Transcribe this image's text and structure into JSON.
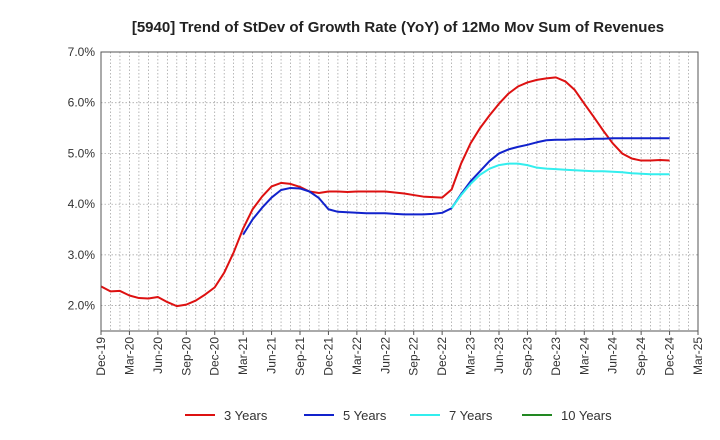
{
  "chart_data": {
    "type": "line",
    "title": "[5940]  Trend of StDev of Growth Rate (YoY) of 12Mo Mov Sum of Revenues",
    "xlabel": "",
    "ylabel": "",
    "ylim": [
      1.5,
      7.0
    ],
    "yticks": [
      2.0,
      3.0,
      4.0,
      5.0,
      6.0,
      7.0
    ],
    "ytick_labels": [
      "2.0%",
      "3.0%",
      "4.0%",
      "5.0%",
      "6.0%",
      "7.0%"
    ],
    "x_start": "Dec-19",
    "x_labels": [
      "Dec-19",
      "Mar-20",
      "Jun-20",
      "Sep-20",
      "Dec-20",
      "Mar-21",
      "Jun-21",
      "Sep-21",
      "Dec-21",
      "Mar-22",
      "Jun-22",
      "Sep-22",
      "Dec-22",
      "Mar-23",
      "Jun-23",
      "Sep-23",
      "Dec-23",
      "Mar-24",
      "Jun-24",
      "Sep-24",
      "Dec-24",
      "Mar-25"
    ],
    "x_months_total": 63,
    "grid": true,
    "legend_position": "bottom",
    "series": [
      {
        "name": "3 Years",
        "color": "#dd1111",
        "start_index": 0,
        "values": [
          2.38,
          2.28,
          2.29,
          2.2,
          2.15,
          2.14,
          2.17,
          2.07,
          1.99,
          2.02,
          2.1,
          2.22,
          2.36,
          2.65,
          3.05,
          3.52,
          3.9,
          4.15,
          4.35,
          4.42,
          4.4,
          4.34,
          4.25,
          4.22,
          4.25,
          4.25,
          4.24,
          4.25,
          4.25,
          4.25,
          4.25,
          4.23,
          4.21,
          4.18,
          4.15,
          4.14,
          4.13,
          4.29,
          4.8,
          5.2,
          5.5,
          5.75,
          5.98,
          6.18,
          6.32,
          6.4,
          6.45,
          6.48,
          6.5,
          6.42,
          6.25,
          5.98,
          5.72,
          5.45,
          5.2,
          5.0,
          4.9,
          4.86,
          4.86,
          4.87,
          4.86
        ]
      },
      {
        "name": "5 Years",
        "color": "#1122cc",
        "start_index": 15,
        "values": [
          3.4,
          3.7,
          3.93,
          4.13,
          4.28,
          4.32,
          4.31,
          4.25,
          4.12,
          3.9,
          3.85,
          3.84,
          3.83,
          3.82,
          3.82,
          3.82,
          3.81,
          3.8,
          3.8,
          3.8,
          3.81,
          3.83,
          3.92,
          4.2,
          4.45,
          4.65,
          4.85,
          5.0,
          5.08,
          5.13,
          5.17,
          5.22,
          5.26,
          5.27,
          5.27,
          5.28,
          5.28,
          5.29,
          5.29,
          5.3,
          5.3,
          5.3,
          5.3,
          5.3,
          5.3,
          5.3
        ]
      },
      {
        "name": "7 Years",
        "color": "#33eeee",
        "start_index": 37,
        "values": [
          3.92,
          4.18,
          4.4,
          4.58,
          4.7,
          4.77,
          4.8,
          4.8,
          4.77,
          4.72,
          4.7,
          4.69,
          4.68,
          4.67,
          4.66,
          4.65,
          4.65,
          4.64,
          4.63,
          4.61,
          4.6,
          4.59,
          4.59,
          4.59
        ]
      },
      {
        "name": "10 Years",
        "color": "#228822",
        "start_index": 0,
        "values": []
      }
    ]
  }
}
